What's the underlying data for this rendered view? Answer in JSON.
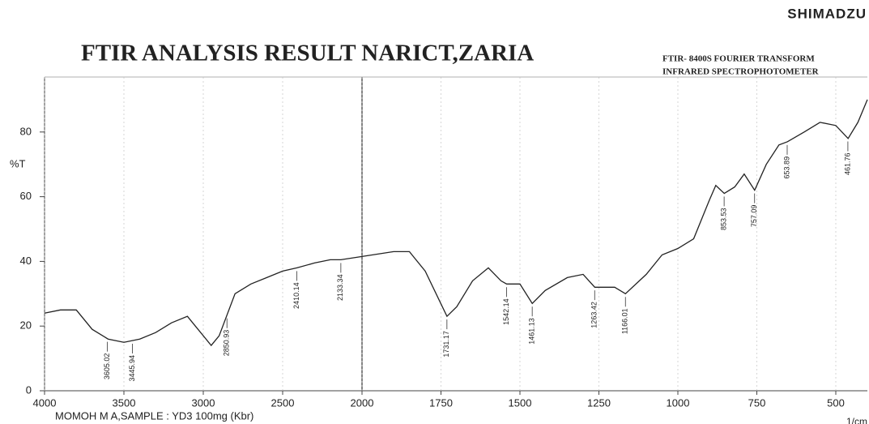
{
  "chart_data": {
    "type": "line",
    "title": "FTIR ANALYSIS RESULT NARICT,ZARIA",
    "brand": "SHIMADZU",
    "instrument": [
      "FTIR- 8400S FOURIER TRANSFORM",
      "INFRARED SPECTROPHOTOMETER"
    ],
    "ylabel": "%T",
    "xlabel": "1/cm",
    "footer": "MOMOH M A,SAMPLE : YD3 100mg (Kbr)",
    "color": "#222222",
    "x": [
      4000,
      3900,
      3800,
      3700,
      3600,
      3500,
      3400,
      3300,
      3200,
      3100,
      3050,
      2950,
      2900,
      2800,
      2700,
      2600,
      2500,
      2410,
      2300,
      2200,
      2133,
      2000,
      1900,
      1850,
      1800,
      1731,
      1700,
      1650,
      1600,
      1560,
      1542,
      1500,
      1461,
      1420,
      1350,
      1300,
      1263,
      1200,
      1166,
      1100,
      1050,
      1000,
      950,
      900,
      880,
      853,
      820,
      790,
      757,
      720,
      680,
      653,
      600,
      550,
      500,
      461,
      430,
      400
    ],
    "values": [
      24,
      25,
      25,
      19,
      16,
      15,
      16,
      18,
      21,
      23,
      20,
      14,
      17,
      30,
      33,
      35,
      37,
      38,
      39.5,
      40.5,
      40.5,
      41.5,
      43,
      43,
      37,
      23,
      26,
      34,
      38,
      34,
      33,
      33,
      27,
      31,
      35,
      36,
      32,
      32,
      30,
      36,
      42,
      44,
      47,
      59,
      63.5,
      61,
      63,
      67,
      62,
      70,
      76,
      77,
      80,
      83,
      82,
      78,
      83,
      90
    ],
    "peaks": [
      3605.02,
      3445.94,
      2850.93,
      2410.14,
      2133.34,
      1731.17,
      1542.14,
      1461.13,
      1263.42,
      1166.01,
      853.53,
      757.09,
      653.89,
      461.76
    ],
    "xlim": [
      4000,
      400
    ],
    "xbreak": 2000,
    "xticks": [
      4000,
      3500,
      3000,
      2500,
      2000,
      1750,
      1500,
      1250,
      1000,
      750,
      500
    ],
    "ylim": [
      0,
      97
    ],
    "yticks": [
      0,
      20,
      40,
      60,
      80
    ],
    "grid": true
  }
}
